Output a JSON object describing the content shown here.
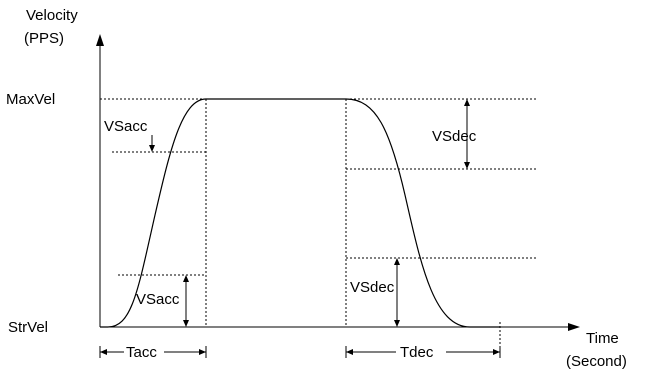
{
  "axes": {
    "y_label_line1": "Velocity",
    "y_label_line2": "(PPS)",
    "x_label_line1": "Time",
    "x_label_line2": "(Second)"
  },
  "levels": {
    "max": "MaxVel",
    "start": "StrVel"
  },
  "annotations": {
    "vs_acc_top": "VSacc",
    "vs_acc_bottom": "VSacc",
    "vs_dec_top": "VSdec",
    "vs_dec_bottom": "VSdec",
    "t_acc": "Tacc",
    "t_dec": "Tdec"
  }
}
